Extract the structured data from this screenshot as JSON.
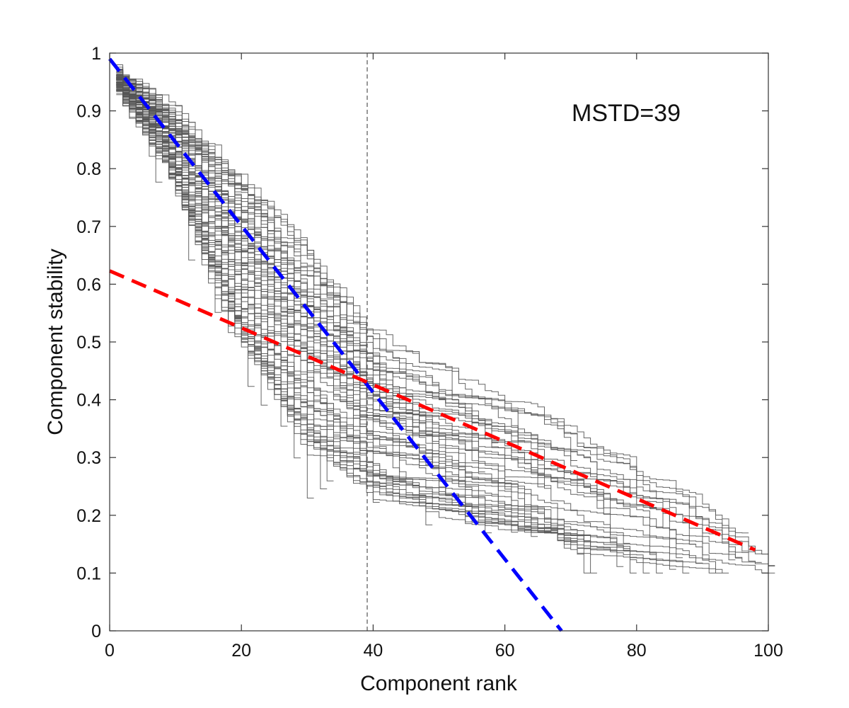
{
  "chart_data": {
    "type": "line",
    "xlabel": "Component rank",
    "ylabel": "Component stability",
    "xlim": [
      0,
      100
    ],
    "ylim": [
      0,
      1
    ],
    "xticks": [
      0,
      20,
      40,
      60,
      80,
      100
    ],
    "xtick_labels": [
      "0",
      "20",
      "40",
      "60",
      "80",
      "100"
    ],
    "yticks": [
      0,
      0.1,
      0.2,
      0.3,
      0.4,
      0.5,
      0.6,
      0.7,
      0.8,
      0.9,
      1
    ],
    "ytick_labels": [
      "0",
      "0.1",
      "0.2",
      "0.3",
      "0.4",
      "0.5",
      "0.6",
      "0.7",
      "0.8",
      "0.9",
      "1"
    ],
    "grid": false,
    "annotation": "MSTD=39",
    "marker_line": {
      "x": 39.1,
      "color": "#555555",
      "style": "dashed"
    },
    "fit_lines": [
      {
        "color": "#0000ff",
        "style": "dashed",
        "points": [
          [
            0,
            0.99
          ],
          [
            68.6,
            0.0
          ]
        ]
      },
      {
        "color": "#ff0000",
        "style": "dashed",
        "points": [
          [
            0,
            0.623
          ],
          [
            98,
            0.14
          ]
        ]
      }
    ],
    "trace_color": "#555555",
    "trace_envelope": {
      "description_units": "rank vs stability",
      "upper": [
        [
          1,
          0.97
        ],
        [
          10,
          0.9
        ],
        [
          20,
          0.8
        ],
        [
          30,
          0.67
        ],
        [
          40,
          0.52
        ],
        [
          55,
          0.45
        ],
        [
          70,
          0.37
        ],
        [
          85,
          0.27
        ],
        [
          100,
          0.135
        ]
      ],
      "lower": [
        [
          1,
          0.94
        ],
        [
          8,
          0.82
        ],
        [
          15,
          0.62
        ],
        [
          20,
          0.5
        ],
        [
          30,
          0.32
        ],
        [
          40,
          0.24
        ],
        [
          55,
          0.19
        ],
        [
          70,
          0.15
        ],
        [
          90,
          0.13
        ],
        [
          98,
          0.11
        ]
      ]
    },
    "trace_lengths": [
      6,
      7,
      8,
      12,
      14,
      15,
      17,
      20,
      22,
      24,
      25,
      27,
      29,
      31,
      33,
      34,
      35,
      37,
      38,
      40,
      42,
      44,
      46,
      48,
      50,
      52,
      54,
      56,
      57,
      58,
      60,
      62,
      64,
      66,
      68,
      70,
      72,
      74,
      76,
      78,
      80,
      82,
      84,
      86,
      88,
      90,
      92,
      94,
      95,
      96,
      97,
      98,
      99,
      100,
      100,
      100,
      45,
      55,
      65,
      75,
      85,
      36,
      39,
      41,
      43,
      47,
      49,
      51,
      53,
      59,
      61,
      63,
      67,
      69,
      71,
      73,
      77,
      79,
      81,
      83,
      87,
      89,
      91,
      93,
      16,
      18,
      21,
      23,
      26,
      28,
      30,
      32
    ],
    "trace_spread": [
      0.02,
      0.12,
      0.97,
      0.05,
      0.5,
      0.4,
      0.15,
      0.72,
      0.3,
      0.88,
      0.6,
      0.25,
      0.81,
      0.45,
      0.1,
      0.55,
      0.92,
      0.35,
      0.68,
      0.2,
      0.78,
      0.42,
      0.63,
      0.07,
      0.5,
      0.95,
      0.33,
      0.58,
      0.17,
      0.75,
      0.48,
      0.86,
      0.28,
      0.65,
      0.38,
      0.9,
      0.13,
      0.7,
      0.53,
      0.22,
      0.83,
      0.44,
      0.6,
      0.31,
      0.77,
      0.5,
      0.18,
      0.67,
      0.4,
      0.94,
      0.57,
      0.27,
      0.73,
      0.1,
      0.62,
      0.85,
      0.9,
      0.8,
      0.7,
      0.6,
      0.5,
      0.95,
      0.86,
      0.8,
      0.74,
      0.66,
      0.58,
      0.52,
      0.46,
      0.4,
      0.34,
      0.28,
      0.22,
      0.18,
      0.14,
      0.11,
      0.09,
      0.08,
      0.07,
      0.06,
      0.05,
      0.04,
      0.03,
      0.02,
      0.05,
      0.03,
      0.04,
      0.02,
      0.06,
      0.04,
      0.03,
      0.05
    ]
  }
}
